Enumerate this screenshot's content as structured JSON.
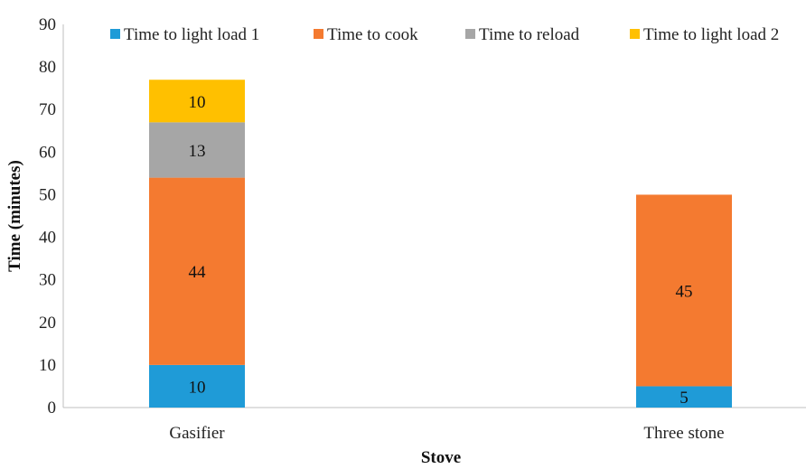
{
  "chart_data": {
    "type": "bar",
    "stacked": true,
    "title": "",
    "xlabel": "Stove",
    "ylabel": "Time (minutes)",
    "ylim": [
      0,
      90
    ],
    "yticks": [
      0,
      10,
      20,
      30,
      40,
      50,
      60,
      70,
      80,
      90
    ],
    "grid": false,
    "legend_position": "top",
    "categories": [
      "Gasifier",
      "Three stone"
    ],
    "series": [
      {
        "name": "Time to light load 1",
        "color": "#1F9BD7",
        "values": [
          10,
          5
        ],
        "labels": [
          "10",
          "5"
        ]
      },
      {
        "name": "Time to cook",
        "color": "#F47A30",
        "values": [
          44,
          45
        ],
        "labels": [
          "44",
          "45"
        ]
      },
      {
        "name": "Time to reload",
        "color": "#A6A6A6",
        "values": [
          13,
          0
        ],
        "labels": [
          "13",
          ""
        ]
      },
      {
        "name": "Time to light load 2",
        "color": "#FFC000",
        "values": [
          10,
          0
        ],
        "labels": [
          "10",
          ""
        ]
      }
    ]
  }
}
